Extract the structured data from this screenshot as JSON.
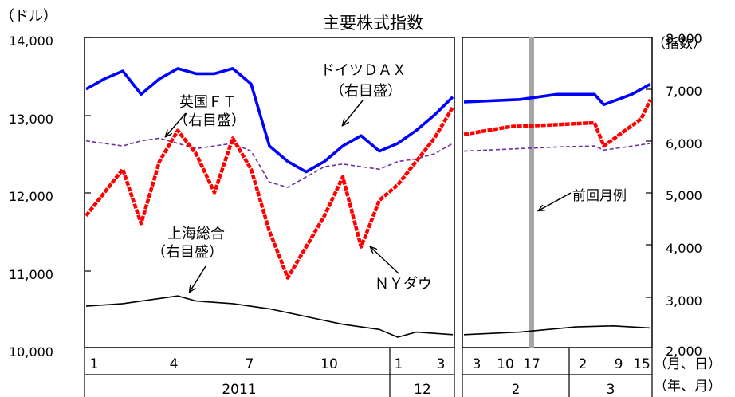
{
  "chart_data": {
    "type": "line",
    "title": "主要株式指数",
    "left_axis": {
      "unit": "（ドル）",
      "ticks": [
        "14,000",
        "13,000",
        "12,000",
        "11,000",
        "10,000"
      ],
      "range": [
        10000,
        14000
      ]
    },
    "right_axis": {
      "unit": "（指数）",
      "ticks": [
        "8,000",
        "7,000",
        "6,000",
        "5,000",
        "4,000",
        "3,000",
        "2,000"
      ],
      "range": [
        2000,
        8000
      ]
    },
    "x_axis": {
      "unit_day": "（月、日）",
      "unit_year": "（年、月）",
      "main_months": [
        "1",
        "4",
        "7",
        "10",
        "1",
        "3"
      ],
      "main_years": [
        "2011",
        "12"
      ],
      "sub_days": [
        "3",
        "10",
        "17",
        "2",
        "9",
        "15"
      ],
      "sub_months": [
        "2",
        "3"
      ]
    },
    "annotations": {
      "dax": [
        "ドイツＤＡＸ",
        "（右目盛）"
      ],
      "ft": [
        "英国ＦＴ",
        "（右目盛）"
      ],
      "shanghai": [
        "上海総合",
        "（右目盛）"
      ],
      "ny": "ＮＹダウ",
      "prev": "前回月例"
    },
    "series": [
      {
        "name": "ＮＹダウ",
        "axis": "left",
        "color": "#ff0000",
        "x": [
          0,
          0.05,
          0.1,
          0.15,
          0.2,
          0.25,
          0.3,
          0.35,
          0.4,
          0.45,
          0.5,
          0.55,
          0.6,
          0.65,
          0.7,
          0.75,
          0.8,
          0.85,
          0.9,
          0.95,
          1
        ],
        "y": [
          11700,
          12000,
          12300,
          11600,
          12400,
          12800,
          12500,
          12000,
          12700,
          12300,
          11500,
          10900,
          11300,
          11700,
          12200,
          11300,
          11900,
          12100,
          12400,
          12700,
          13100
        ],
        "sub_x": [
          0,
          0.25,
          0.45,
          0.7,
          0.75,
          0.95,
          1
        ],
        "sub_y": [
          12750,
          12850,
          12870,
          12900,
          12600,
          12950,
          13200
        ]
      },
      {
        "name": "ドイツＤＡＸ",
        "axis": "right",
        "color": "#0000ff",
        "x": [
          0,
          0.05,
          0.1,
          0.15,
          0.2,
          0.25,
          0.3,
          0.35,
          0.4,
          0.45,
          0.5,
          0.55,
          0.6,
          0.65,
          0.7,
          0.75,
          0.8,
          0.85,
          0.9,
          0.95,
          1
        ],
        "y": [
          7000,
          7200,
          7350,
          6900,
          7200,
          7400,
          7300,
          7300,
          7400,
          7100,
          5900,
          5600,
          5400,
          5600,
          5900,
          6100,
          5800,
          5950,
          6200,
          6500,
          6850
        ],
        "sub_x": [
          0,
          0.3,
          0.5,
          0.7,
          0.75,
          0.9,
          1
        ],
        "sub_y": [
          6750,
          6800,
          6900,
          6900,
          6700,
          6900,
          7100
        ]
      },
      {
        "name": "英国ＦＴ",
        "axis": "right",
        "color": "#7030a0",
        "x": [
          0,
          0.05,
          0.1,
          0.15,
          0.2,
          0.25,
          0.3,
          0.35,
          0.4,
          0.45,
          0.5,
          0.55,
          0.6,
          0.65,
          0.7,
          0.75,
          0.8,
          0.85,
          0.9,
          0.95,
          1
        ],
        "y": [
          6000,
          5950,
          5900,
          6000,
          6050,
          5950,
          5850,
          5900,
          5950,
          5800,
          5200,
          5100,
          5300,
          5500,
          5550,
          5500,
          5450,
          5600,
          5650,
          5750,
          5950
        ],
        "sub_x": [
          0,
          0.3,
          0.5,
          0.7,
          0.75,
          1
        ],
        "sub_y": [
          5800,
          5850,
          5880,
          5900,
          5820,
          5950
        ]
      },
      {
        "name": "上海総合",
        "axis": "right",
        "color": "#000000",
        "x": [
          0,
          0.1,
          0.2,
          0.25,
          0.3,
          0.4,
          0.5,
          0.6,
          0.7,
          0.8,
          0.85,
          0.9,
          1
        ],
        "y": [
          2800,
          2850,
          2950,
          3000,
          2900,
          2850,
          2750,
          2600,
          2450,
          2350,
          2200,
          2300,
          2250
        ],
        "sub_x": [
          0,
          0.3,
          0.6,
          0.8,
          1
        ],
        "sub_y": [
          2250,
          2300,
          2400,
          2420,
          2380
        ]
      }
    ]
  }
}
